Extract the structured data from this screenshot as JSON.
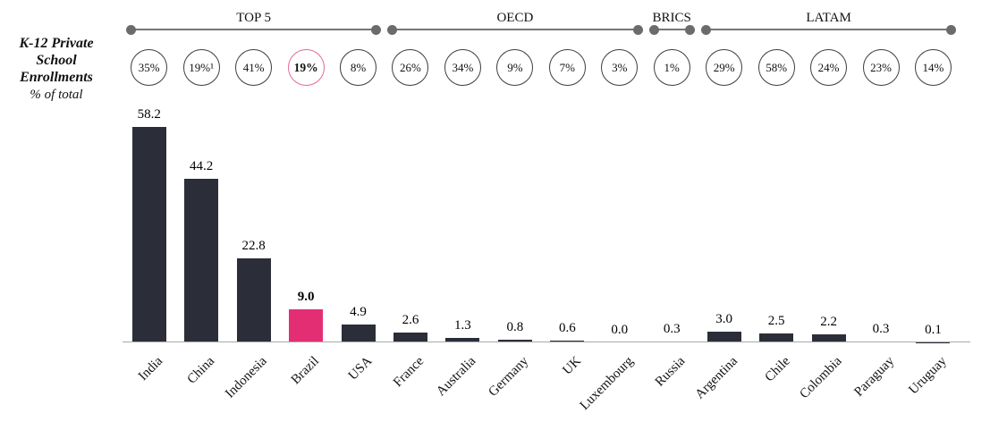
{
  "header": {
    "title_lines": [
      "K-12 Private",
      "School",
      "Enrollments"
    ],
    "subtitle": "% of total"
  },
  "colors": {
    "bar": "#2b2e38",
    "highlight_bar": "#e42e74",
    "circle_border": "#3d3d3d",
    "highlight_circle_border": "#e8679c",
    "bracket_gray": "#6b6b6b",
    "axis_line": "#a9a9a9",
    "text": "#111111"
  },
  "chart_data": {
    "type": "bar",
    "title": "K-12 Private School Enrollments",
    "subtitle": "% of total",
    "categories": [
      "India",
      "China",
      "Indonesia",
      "Brazil",
      "USA",
      "France",
      "Australia",
      "Germany",
      "UK",
      "Luxembourg",
      "Russia",
      "Argentina",
      "Chile",
      "Colombia",
      "Paraguay",
      "Uruguay"
    ],
    "values": [
      58.2,
      44.2,
      22.8,
      9.0,
      4.9,
      2.6,
      1.3,
      0.8,
      0.6,
      0.0,
      0.3,
      3.0,
      2.5,
      2.2,
      0.3,
      0.1
    ],
    "value_labels": [
      "58.2",
      "44.2",
      "22.8",
      "9.0",
      "4.9",
      "2.6",
      "1.3",
      "0.8",
      "0.6",
      "0.0",
      "0.3",
      "3.0",
      "2.5",
      "2.2",
      "0.3",
      "0.1"
    ],
    "percent_of_total": [
      "35%",
      "19%¹",
      "41%",
      "19%",
      "8%",
      "26%",
      "34%",
      "9%",
      "7%",
      "3%",
      "1%",
      "29%",
      "58%",
      "24%",
      "23%",
      "14%"
    ],
    "highlight_index": 3,
    "highlight_country": "Brazil",
    "groups": [
      {
        "label": "TOP 5",
        "start_index": 0,
        "end_index": 4
      },
      {
        "label": "OECD",
        "start_index": 5,
        "end_index": 9
      },
      {
        "label": "BRICS",
        "start_index": 10,
        "end_index": 10
      },
      {
        "label": "LATAM",
        "start_index": 11,
        "end_index": 15
      }
    ],
    "ylim": [
      0,
      60
    ],
    "y_axis_visible": false,
    "grid": false,
    "legend": false
  }
}
